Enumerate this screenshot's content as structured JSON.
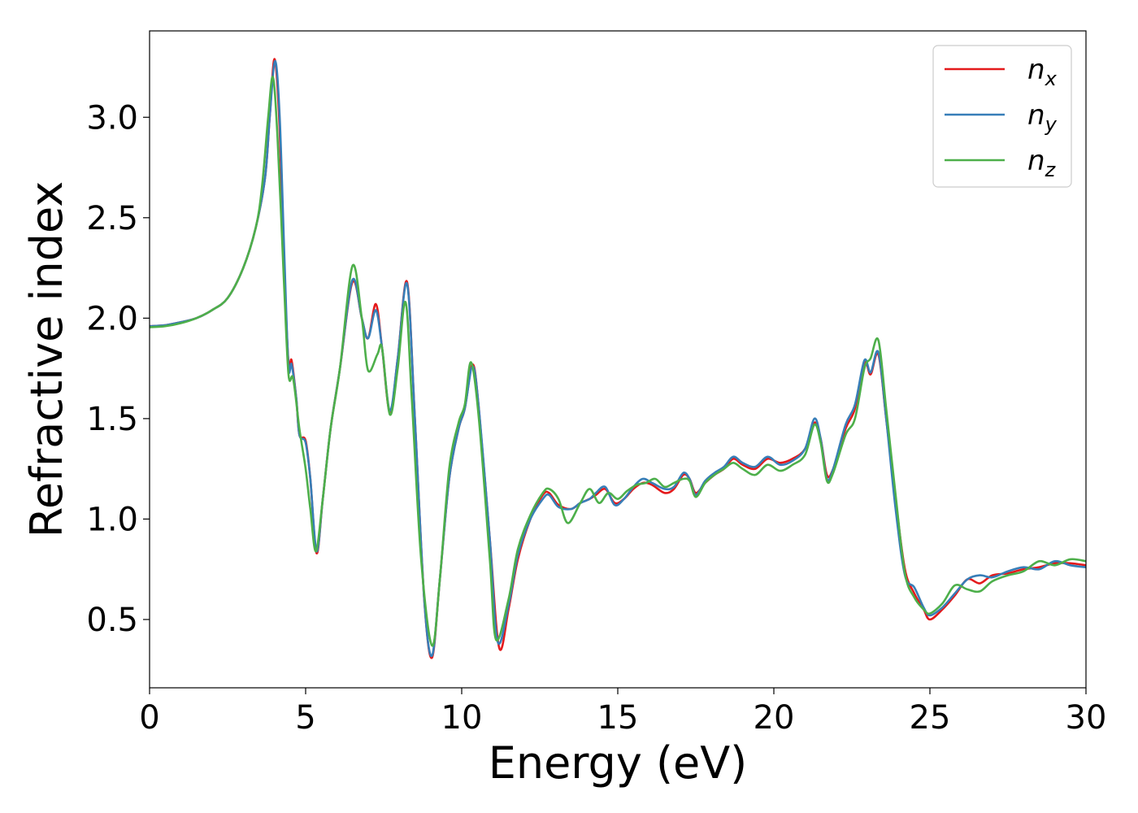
{
  "chart_data": {
    "type": "line",
    "title": "",
    "xlabel": "Energy (eV)",
    "ylabel": "Refractive index",
    "xlim": [
      0,
      30
    ],
    "ylim": [
      0.16,
      3.43
    ],
    "x_ticks": [
      0,
      5,
      10,
      15,
      20,
      25,
      30
    ],
    "x_tick_labels": [
      "0",
      "5",
      "10",
      "15",
      "20",
      "25",
      "30"
    ],
    "y_ticks": [
      0.5,
      1.0,
      1.5,
      2.0,
      2.5,
      3.0
    ],
    "y_tick_labels": [
      "0.5",
      "1.0",
      "1.5",
      "2.0",
      "2.5",
      "3.0"
    ],
    "grid": false,
    "legend_position": "top-right",
    "series": [
      {
        "name": "n",
        "subscript": "x",
        "color": "#e41a1c",
        "points": [
          [
            0,
            1.96
          ],
          [
            0.5,
            1.965
          ],
          [
            1,
            1.98
          ],
          [
            1.5,
            2.0
          ],
          [
            2,
            2.04
          ],
          [
            2.5,
            2.1
          ],
          [
            3,
            2.25
          ],
          [
            3.4,
            2.45
          ],
          [
            3.7,
            2.7
          ],
          [
            3.85,
            3.0
          ],
          [
            4.0,
            3.29
          ],
          [
            4.15,
            3.0
          ],
          [
            4.3,
            2.3
          ],
          [
            4.45,
            1.78
          ],
          [
            4.55,
            1.79
          ],
          [
            4.7,
            1.6
          ],
          [
            4.8,
            1.42
          ],
          [
            5.0,
            1.39
          ],
          [
            5.15,
            1.2
          ],
          [
            5.35,
            0.83
          ],
          [
            5.55,
            1.1
          ],
          [
            5.8,
            1.45
          ],
          [
            6.1,
            1.75
          ],
          [
            6.5,
            2.18
          ],
          [
            6.8,
            2.0
          ],
          [
            7.0,
            1.9
          ],
          [
            7.25,
            2.07
          ],
          [
            7.45,
            1.85
          ],
          [
            7.7,
            1.53
          ],
          [
            7.95,
            1.8
          ],
          [
            8.25,
            2.18
          ],
          [
            8.5,
            1.5
          ],
          [
            8.8,
            0.6
          ],
          [
            9.05,
            0.31
          ],
          [
            9.3,
            0.7
          ],
          [
            9.6,
            1.2
          ],
          [
            9.9,
            1.45
          ],
          [
            10.1,
            1.55
          ],
          [
            10.35,
            1.77
          ],
          [
            10.55,
            1.55
          ],
          [
            10.9,
            0.9
          ],
          [
            11.2,
            0.36
          ],
          [
            11.5,
            0.55
          ],
          [
            11.8,
            0.8
          ],
          [
            12.2,
            1.0
          ],
          [
            12.6,
            1.12
          ],
          [
            12.8,
            1.13
          ],
          [
            13.1,
            1.07
          ],
          [
            13.5,
            1.05
          ],
          [
            13.8,
            1.08
          ],
          [
            14.1,
            1.1
          ],
          [
            14.3,
            1.12
          ],
          [
            14.6,
            1.15
          ],
          [
            14.9,
            1.08
          ],
          [
            15.2,
            1.1
          ],
          [
            15.5,
            1.15
          ],
          [
            15.8,
            1.18
          ],
          [
            16.1,
            1.17
          ],
          [
            16.5,
            1.13
          ],
          [
            16.8,
            1.15
          ],
          [
            17.1,
            1.22
          ],
          [
            17.3,
            1.2
          ],
          [
            17.5,
            1.13
          ],
          [
            17.8,
            1.18
          ],
          [
            18.1,
            1.22
          ],
          [
            18.4,
            1.25
          ],
          [
            18.7,
            1.3
          ],
          [
            19.0,
            1.27
          ],
          [
            19.4,
            1.25
          ],
          [
            19.8,
            1.3
          ],
          [
            20.2,
            1.28
          ],
          [
            20.6,
            1.3
          ],
          [
            21.0,
            1.35
          ],
          [
            21.3,
            1.48
          ],
          [
            21.5,
            1.4
          ],
          [
            21.7,
            1.22
          ],
          [
            21.9,
            1.25
          ],
          [
            22.3,
            1.45
          ],
          [
            22.6,
            1.55
          ],
          [
            22.9,
            1.78
          ],
          [
            23.1,
            1.72
          ],
          [
            23.35,
            1.82
          ],
          [
            23.6,
            1.5
          ],
          [
            23.9,
            1.1
          ],
          [
            24.2,
            0.75
          ],
          [
            24.5,
            0.63
          ],
          [
            24.8,
            0.55
          ],
          [
            25.0,
            0.5
          ],
          [
            25.4,
            0.55
          ],
          [
            25.8,
            0.62
          ],
          [
            26.2,
            0.7
          ],
          [
            26.6,
            0.68
          ],
          [
            27.0,
            0.72
          ],
          [
            27.5,
            0.73
          ],
          [
            28.0,
            0.75
          ],
          [
            28.5,
            0.76
          ],
          [
            29.0,
            0.78
          ],
          [
            29.5,
            0.78
          ],
          [
            30.0,
            0.77
          ]
        ]
      },
      {
        "name": "n",
        "subscript": "y",
        "color": "#377eb8",
        "points": [
          [
            0,
            1.96
          ],
          [
            0.5,
            1.965
          ],
          [
            1,
            1.98
          ],
          [
            1.5,
            2.0
          ],
          [
            2,
            2.04
          ],
          [
            2.5,
            2.1
          ],
          [
            3,
            2.25
          ],
          [
            3.4,
            2.45
          ],
          [
            3.7,
            2.7
          ],
          [
            3.85,
            3.0
          ],
          [
            4.02,
            3.28
          ],
          [
            4.17,
            3.0
          ],
          [
            4.32,
            2.3
          ],
          [
            4.45,
            1.76
          ],
          [
            4.55,
            1.77
          ],
          [
            4.7,
            1.6
          ],
          [
            4.8,
            1.42
          ],
          [
            5.0,
            1.38
          ],
          [
            5.15,
            1.2
          ],
          [
            5.35,
            0.84
          ],
          [
            5.55,
            1.1
          ],
          [
            5.8,
            1.45
          ],
          [
            6.1,
            1.75
          ],
          [
            6.5,
            2.19
          ],
          [
            6.8,
            2.0
          ],
          [
            7.0,
            1.9
          ],
          [
            7.25,
            2.04
          ],
          [
            7.45,
            1.85
          ],
          [
            7.7,
            1.54
          ],
          [
            7.95,
            1.8
          ],
          [
            8.25,
            2.17
          ],
          [
            8.5,
            1.5
          ],
          [
            8.8,
            0.6
          ],
          [
            9.05,
            0.32
          ],
          [
            9.3,
            0.7
          ],
          [
            9.6,
            1.2
          ],
          [
            9.9,
            1.45
          ],
          [
            10.1,
            1.55
          ],
          [
            10.35,
            1.76
          ],
          [
            10.55,
            1.55
          ],
          [
            10.9,
            0.9
          ],
          [
            11.15,
            0.39
          ],
          [
            11.5,
            0.57
          ],
          [
            11.8,
            0.82
          ],
          [
            12.2,
            1.0
          ],
          [
            12.6,
            1.1
          ],
          [
            12.8,
            1.12
          ],
          [
            13.1,
            1.06
          ],
          [
            13.5,
            1.05
          ],
          [
            13.8,
            1.08
          ],
          [
            14.1,
            1.1
          ],
          [
            14.3,
            1.13
          ],
          [
            14.6,
            1.16
          ],
          [
            14.9,
            1.07
          ],
          [
            15.2,
            1.1
          ],
          [
            15.5,
            1.16
          ],
          [
            15.8,
            1.2
          ],
          [
            16.1,
            1.18
          ],
          [
            16.5,
            1.15
          ],
          [
            16.8,
            1.16
          ],
          [
            17.1,
            1.23
          ],
          [
            17.3,
            1.2
          ],
          [
            17.5,
            1.12
          ],
          [
            17.8,
            1.19
          ],
          [
            18.1,
            1.23
          ],
          [
            18.4,
            1.26
          ],
          [
            18.7,
            1.31
          ],
          [
            19.0,
            1.28
          ],
          [
            19.4,
            1.26
          ],
          [
            19.8,
            1.31
          ],
          [
            20.2,
            1.27
          ],
          [
            20.6,
            1.29
          ],
          [
            21.0,
            1.35
          ],
          [
            21.3,
            1.5
          ],
          [
            21.5,
            1.4
          ],
          [
            21.7,
            1.2
          ],
          [
            21.9,
            1.25
          ],
          [
            22.3,
            1.47
          ],
          [
            22.6,
            1.57
          ],
          [
            22.9,
            1.79
          ],
          [
            23.1,
            1.73
          ],
          [
            23.35,
            1.83
          ],
          [
            23.6,
            1.5
          ],
          [
            23.9,
            1.05
          ],
          [
            24.2,
            0.72
          ],
          [
            24.5,
            0.66
          ],
          [
            24.8,
            0.56
          ],
          [
            25.0,
            0.52
          ],
          [
            25.4,
            0.56
          ],
          [
            25.8,
            0.63
          ],
          [
            26.2,
            0.7
          ],
          [
            26.6,
            0.72
          ],
          [
            27.0,
            0.71
          ],
          [
            27.5,
            0.74
          ],
          [
            28.0,
            0.76
          ],
          [
            28.5,
            0.75
          ],
          [
            29.0,
            0.79
          ],
          [
            29.5,
            0.77
          ],
          [
            30.0,
            0.76
          ]
        ]
      },
      {
        "name": "n",
        "subscript": "z",
        "color": "#4daf4a",
        "points": [
          [
            0,
            1.955
          ],
          [
            0.5,
            1.96
          ],
          [
            1,
            1.975
          ],
          [
            1.5,
            2.0
          ],
          [
            2,
            2.04
          ],
          [
            2.5,
            2.1
          ],
          [
            3,
            2.25
          ],
          [
            3.4,
            2.45
          ],
          [
            3.6,
            2.65
          ],
          [
            3.8,
            3.0
          ],
          [
            3.95,
            3.2
          ],
          [
            4.1,
            2.9
          ],
          [
            4.3,
            2.2
          ],
          [
            4.45,
            1.72
          ],
          [
            4.6,
            1.7
          ],
          [
            4.8,
            1.45
          ],
          [
            5.0,
            1.25
          ],
          [
            5.15,
            1.05
          ],
          [
            5.33,
            0.84
          ],
          [
            5.55,
            1.1
          ],
          [
            5.8,
            1.45
          ],
          [
            6.1,
            1.75
          ],
          [
            6.5,
            2.26
          ],
          [
            6.8,
            2.0
          ],
          [
            7.0,
            1.74
          ],
          [
            7.3,
            1.82
          ],
          [
            7.45,
            1.85
          ],
          [
            7.7,
            1.52
          ],
          [
            7.95,
            1.75
          ],
          [
            8.2,
            2.08
          ],
          [
            8.4,
            1.6
          ],
          [
            8.7,
            0.8
          ],
          [
            9.05,
            0.37
          ],
          [
            9.3,
            0.7
          ],
          [
            9.6,
            1.25
          ],
          [
            9.9,
            1.48
          ],
          [
            10.1,
            1.57
          ],
          [
            10.3,
            1.78
          ],
          [
            10.55,
            1.5
          ],
          [
            10.9,
            0.8
          ],
          [
            11.1,
            0.4
          ],
          [
            11.5,
            0.6
          ],
          [
            11.8,
            0.85
          ],
          [
            12.2,
            1.02
          ],
          [
            12.6,
            1.13
          ],
          [
            12.8,
            1.15
          ],
          [
            13.1,
            1.1
          ],
          [
            13.4,
            0.98
          ],
          [
            13.8,
            1.08
          ],
          [
            14.1,
            1.15
          ],
          [
            14.4,
            1.08
          ],
          [
            14.7,
            1.13
          ],
          [
            15.0,
            1.1
          ],
          [
            15.3,
            1.14
          ],
          [
            15.6,
            1.17
          ],
          [
            15.9,
            1.18
          ],
          [
            16.2,
            1.2
          ],
          [
            16.5,
            1.16
          ],
          [
            16.8,
            1.18
          ],
          [
            17.1,
            1.2
          ],
          [
            17.3,
            1.19
          ],
          [
            17.5,
            1.11
          ],
          [
            17.8,
            1.18
          ],
          [
            18.1,
            1.22
          ],
          [
            18.4,
            1.25
          ],
          [
            18.7,
            1.28
          ],
          [
            19.0,
            1.25
          ],
          [
            19.4,
            1.22
          ],
          [
            19.8,
            1.27
          ],
          [
            20.2,
            1.24
          ],
          [
            20.6,
            1.27
          ],
          [
            21.0,
            1.32
          ],
          [
            21.3,
            1.47
          ],
          [
            21.5,
            1.38
          ],
          [
            21.7,
            1.19
          ],
          [
            21.9,
            1.23
          ],
          [
            22.3,
            1.42
          ],
          [
            22.6,
            1.5
          ],
          [
            22.9,
            1.75
          ],
          [
            23.1,
            1.8
          ],
          [
            23.35,
            1.89
          ],
          [
            23.6,
            1.55
          ],
          [
            23.9,
            1.12
          ],
          [
            24.2,
            0.73
          ],
          [
            24.5,
            0.61
          ],
          [
            24.8,
            0.55
          ],
          [
            25.0,
            0.53
          ],
          [
            25.4,
            0.58
          ],
          [
            25.8,
            0.67
          ],
          [
            26.2,
            0.65
          ],
          [
            26.6,
            0.64
          ],
          [
            27.0,
            0.69
          ],
          [
            27.5,
            0.72
          ],
          [
            28.0,
            0.74
          ],
          [
            28.5,
            0.79
          ],
          [
            29.0,
            0.77
          ],
          [
            29.5,
            0.8
          ],
          [
            30.0,
            0.79
          ]
        ]
      }
    ]
  }
}
